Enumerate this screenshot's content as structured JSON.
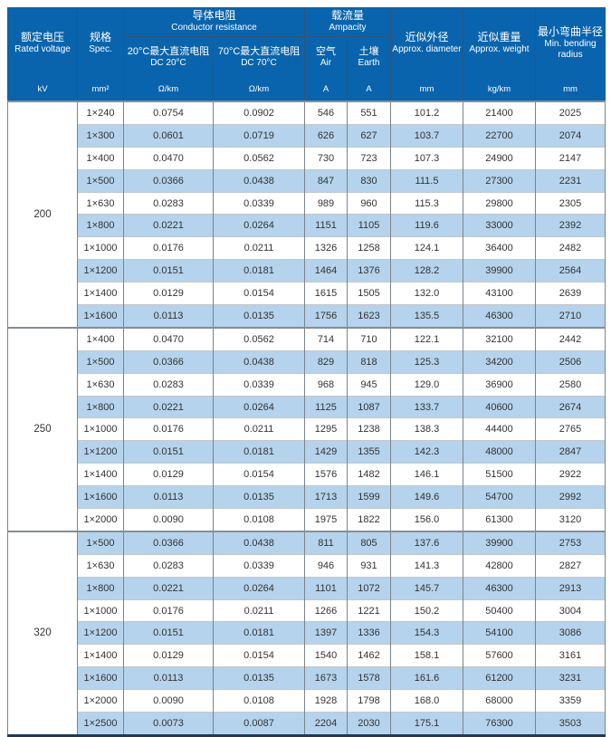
{
  "colors": {
    "header_bg": "#0a64ad",
    "header_text": "#ffffff",
    "stripe_bg": "#b5d3ec",
    "row_bg": "#ffffff",
    "body_text": "#333333",
    "grid_vertical": "#7b838b",
    "grid_horizontal": "#c3c7cb",
    "group_divider": "#858d95",
    "header_divider": "#2f5578",
    "table_bottom": "#203a54"
  },
  "table": {
    "header": {
      "voltage": {
        "zh": "额定电压",
        "en": "Rated voltage",
        "unit": "kV"
      },
      "spec": {
        "zh": "规格",
        "en": "Spec.",
        "unit": "mm²"
      },
      "resistance_group": {
        "zh": "导体电阻",
        "en": "Conductor resistance"
      },
      "dc20": {
        "zh": "20°C最大直流电阻",
        "en": "DC 20°C",
        "unit": "Ω/km"
      },
      "dc70": {
        "zh": "70°C最大直流电阻",
        "en": "DC 70°C",
        "unit": "Ω/km"
      },
      "ampacity_group": {
        "zh": "载流量",
        "en": "Ampacity"
      },
      "air": {
        "zh": "空气",
        "en": "Air",
        "unit": "A"
      },
      "earth": {
        "zh": "土壤",
        "en": "Earth",
        "unit": "A"
      },
      "diameter": {
        "zh": "近似外径",
        "en": "Approx. diameter",
        "unit": "mm"
      },
      "weight": {
        "zh": "近似重量",
        "en": "Approx. weight",
        "unit": "kg/km"
      },
      "bending": {
        "zh": "最小弯曲半径",
        "en": "Min. bending radius",
        "unit": "mm"
      }
    },
    "groups": [
      {
        "voltage": "200",
        "rows": [
          [
            "1×240",
            "0.0754",
            "0.0902",
            "546",
            "551",
            "101.2",
            "21400",
            "2025"
          ],
          [
            "1×300",
            "0.0601",
            "0.0719",
            "626",
            "627",
            "103.7",
            "22700",
            "2074"
          ],
          [
            "1×400",
            "0.0470",
            "0.0562",
            "730",
            "723",
            "107.3",
            "24900",
            "2147"
          ],
          [
            "1×500",
            "0.0366",
            "0.0438",
            "847",
            "830",
            "111.5",
            "27300",
            "2231"
          ],
          [
            "1×630",
            "0.0283",
            "0.0339",
            "989",
            "960",
            "115.3",
            "29800",
            "2305"
          ],
          [
            "1×800",
            "0.0221",
            "0.0264",
            "1151",
            "1105",
            "119.6",
            "33000",
            "2392"
          ],
          [
            "1×1000",
            "0.0176",
            "0.0211",
            "1326",
            "1258",
            "124.1",
            "36400",
            "2482"
          ],
          [
            "1×1200",
            "0.0151",
            "0.0181",
            "1464",
            "1376",
            "128.2",
            "39900",
            "2564"
          ],
          [
            "1×1400",
            "0.0129",
            "0.0154",
            "1615",
            "1505",
            "132.0",
            "43100",
            "2639"
          ],
          [
            "1×1600",
            "0.0113",
            "0.0135",
            "1756",
            "1623",
            "135.5",
            "46300",
            "2710"
          ]
        ]
      },
      {
        "voltage": "250",
        "rows": [
          [
            "1×400",
            "0.0470",
            "0.0562",
            "714",
            "710",
            "122.1",
            "32100",
            "2442"
          ],
          [
            "1×500",
            "0.0366",
            "0.0438",
            "829",
            "818",
            "125.3",
            "34200",
            "2506"
          ],
          [
            "1×630",
            "0.0283",
            "0.0339",
            "968",
            "945",
            "129.0",
            "36900",
            "2580"
          ],
          [
            "1×800",
            "0.0221",
            "0.0264",
            "1125",
            "1087",
            "133.7",
            "40600",
            "2674"
          ],
          [
            "1×1000",
            "0.0176",
            "0.0211",
            "1295",
            "1238",
            "138.3",
            "44400",
            "2765"
          ],
          [
            "1×1200",
            "0.0151",
            "0.0181",
            "1429",
            "1355",
            "142.3",
            "48000",
            "2847"
          ],
          [
            "1×1400",
            "0.0129",
            "0.0154",
            "1576",
            "1482",
            "146.1",
            "51500",
            "2922"
          ],
          [
            "1×1600",
            "0.0113",
            "0.0135",
            "1713",
            "1599",
            "149.6",
            "54700",
            "2992"
          ],
          [
            "1×2000",
            "0.0090",
            "0.0108",
            "1975",
            "1822",
            "156.0",
            "61300",
            "3120"
          ]
        ]
      },
      {
        "voltage": "320",
        "rows": [
          [
            "1×500",
            "0.0366",
            "0.0438",
            "811",
            "805",
            "137.6",
            "39900",
            "2753"
          ],
          [
            "1×630",
            "0.0283",
            "0.0339",
            "946",
            "931",
            "141.3",
            "42800",
            "2827"
          ],
          [
            "1×800",
            "0.0221",
            "0.0264",
            "1101",
            "1072",
            "145.7",
            "46300",
            "2913"
          ],
          [
            "1×1000",
            "0.0176",
            "0.0211",
            "1266",
            "1221",
            "150.2",
            "50400",
            "3004"
          ],
          [
            "1×1200",
            "0.0151",
            "0.0181",
            "1397",
            "1336",
            "154.3",
            "54100",
            "3086"
          ],
          [
            "1×1400",
            "0.0129",
            "0.0154",
            "1540",
            "1462",
            "158.1",
            "57600",
            "3161"
          ],
          [
            "1×1600",
            "0.0113",
            "0.0135",
            "1673",
            "1578",
            "161.6",
            "61200",
            "3231"
          ],
          [
            "1×2000",
            "0.0090",
            "0.0108",
            "1928",
            "1798",
            "168.0",
            "68000",
            "3359"
          ],
          [
            "1×2500",
            "0.0073",
            "0.0087",
            "2204",
            "2030",
            "175.1",
            "76300",
            "3503"
          ]
        ]
      }
    ]
  }
}
